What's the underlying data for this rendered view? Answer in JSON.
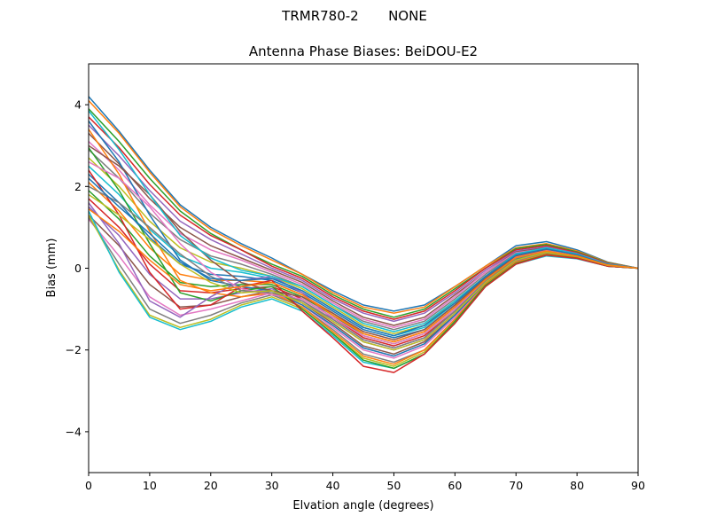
{
  "figure": {
    "suptitle": "TRMR780-2       NONE"
  },
  "chart_data": {
    "type": "line",
    "title": "Antenna Phase Biases: BeiDOU-E2",
    "xlabel": "Elvation angle (degrees)",
    "ylabel": "Bias (mm)",
    "xlim": [
      0,
      90
    ],
    "ylim": [
      -5,
      5
    ],
    "xticks": [
      0,
      10,
      20,
      30,
      40,
      50,
      60,
      70,
      80,
      90
    ],
    "yticks": [
      -4,
      -2,
      0,
      2,
      4
    ],
    "grid": false,
    "legend": false,
    "x": [
      0,
      5,
      10,
      15,
      20,
      25,
      30,
      35,
      40,
      45,
      50,
      55,
      60,
      65,
      70,
      75,
      80,
      85,
      90
    ],
    "colors": [
      "#1f77b4",
      "#ff7f0e",
      "#2ca02c",
      "#d62728",
      "#9467bd",
      "#8c564b",
      "#e377c2",
      "#7f7f7f",
      "#bcbd22",
      "#17becf"
    ],
    "series": [
      {
        "values": [
          4.2,
          3.35,
          2.4,
          1.55,
          1.0,
          0.6,
          0.25,
          -0.15,
          -0.55,
          -0.9,
          -1.05,
          -0.9,
          -0.45,
          0.05,
          0.55,
          0.65,
          0.45,
          0.15,
          0.0
        ]
      },
      {
        "values": [
          4.1,
          3.3,
          2.35,
          1.5,
          0.95,
          0.55,
          0.2,
          -0.15,
          -0.6,
          -0.95,
          -1.1,
          -0.95,
          -0.45,
          0.05,
          0.5,
          0.6,
          0.42,
          0.14,
          0.0
        ]
      },
      {
        "values": [
          3.9,
          3.1,
          2.2,
          1.4,
          0.85,
          0.45,
          0.1,
          -0.2,
          -0.65,
          -1.0,
          -1.2,
          -1.0,
          -0.5,
          0.0,
          0.48,
          0.58,
          0.4,
          0.13,
          0.0
        ]
      },
      {
        "values": [
          3.7,
          2.95,
          2.05,
          1.3,
          0.8,
          0.45,
          0.05,
          -0.25,
          -0.7,
          -1.05,
          -1.25,
          -1.05,
          -0.55,
          0.0,
          0.45,
          0.55,
          0.38,
          0.12,
          0.0
        ]
      },
      {
        "values": [
          3.5,
          2.75,
          1.9,
          1.15,
          0.7,
          0.35,
          0.0,
          -0.3,
          -0.75,
          -1.1,
          -1.3,
          -1.1,
          -0.6,
          -0.05,
          0.42,
          0.52,
          0.36,
          0.11,
          0.0
        ]
      },
      {
        "values": [
          3.3,
          2.55,
          1.7,
          1.0,
          0.55,
          0.25,
          -0.05,
          -0.35,
          -0.8,
          -1.2,
          -1.4,
          -1.2,
          -0.65,
          -0.1,
          0.4,
          0.5,
          0.35,
          0.1,
          0.0
        ]
      },
      {
        "values": [
          3.1,
          2.4,
          1.55,
          0.85,
          0.45,
          0.2,
          -0.1,
          -0.4,
          -0.85,
          -1.25,
          -1.45,
          -1.25,
          -0.7,
          -0.1,
          0.38,
          0.48,
          0.34,
          0.1,
          0.0
        ]
      },
      {
        "values": [
          2.9,
          2.2,
          1.35,
          0.7,
          0.3,
          0.1,
          -0.15,
          -0.45,
          -0.9,
          -1.3,
          -1.5,
          -1.3,
          -0.75,
          -0.15,
          0.36,
          0.46,
          0.33,
          0.1,
          0.0
        ]
      },
      {
        "values": [
          2.7,
          2.0,
          1.15,
          0.5,
          0.15,
          0.0,
          -0.2,
          -0.5,
          -0.95,
          -1.4,
          -1.6,
          -1.4,
          -0.8,
          -0.2,
          0.33,
          0.44,
          0.32,
          0.09,
          0.0
        ]
      },
      {
        "values": [
          2.5,
          1.8,
          0.95,
          0.3,
          0.0,
          -0.1,
          -0.25,
          -0.55,
          -1.0,
          -1.45,
          -1.65,
          -1.45,
          -0.85,
          -0.22,
          0.3,
          0.42,
          0.31,
          0.09,
          0.0
        ]
      },
      {
        "values": [
          2.3,
          1.6,
          0.75,
          0.1,
          -0.15,
          -0.2,
          -0.3,
          -0.6,
          -1.05,
          -1.5,
          -1.7,
          -1.5,
          -0.9,
          -0.25,
          0.28,
          0.4,
          0.3,
          0.08,
          0.0
        ]
      },
      {
        "values": [
          2.1,
          1.4,
          0.5,
          -0.15,
          -0.3,
          -0.3,
          -0.35,
          -0.65,
          -1.1,
          -1.6,
          -1.8,
          -1.55,
          -0.95,
          -0.28,
          0.25,
          0.38,
          0.29,
          0.08,
          0.0
        ]
      },
      {
        "values": [
          1.9,
          1.2,
          0.3,
          -0.35,
          -0.45,
          -0.4,
          -0.4,
          -0.7,
          -1.15,
          -1.65,
          -1.85,
          -1.6,
          -1.0,
          -0.3,
          0.22,
          0.37,
          0.28,
          0.07,
          0.0
        ]
      },
      {
        "values": [
          1.7,
          1.0,
          0.1,
          -0.55,
          -0.6,
          -0.5,
          -0.45,
          -0.75,
          -1.2,
          -1.7,
          -1.9,
          -1.65,
          -1.05,
          -0.32,
          0.2,
          0.36,
          0.27,
          0.07,
          0.0
        ]
      },
      {
        "values": [
          1.5,
          0.8,
          -0.15,
          -0.75,
          -0.75,
          -0.6,
          -0.5,
          -0.8,
          -1.3,
          -1.8,
          -2.0,
          -1.75,
          -1.1,
          -0.35,
          0.18,
          0.35,
          0.26,
          0.06,
          0.0
        ]
      },
      {
        "values": [
          1.3,
          0.55,
          -0.4,
          -0.95,
          -0.9,
          -0.7,
          -0.55,
          -0.85,
          -1.35,
          -1.9,
          -2.1,
          -1.8,
          -1.15,
          -0.38,
          0.15,
          0.34,
          0.25,
          0.06,
          0.0
        ]
      },
      {
        "values": [
          1.2,
          0.3,
          -0.7,
          -1.15,
          -1.0,
          -0.8,
          -0.6,
          -0.9,
          -1.45,
          -2.0,
          -2.2,
          -1.9,
          -1.2,
          -0.4,
          0.12,
          0.33,
          0.25,
          0.05,
          0.0
        ]
      },
      {
        "values": [
          1.25,
          0.1,
          -1.0,
          -1.35,
          -1.15,
          -0.85,
          -0.65,
          -0.95,
          -1.5,
          -2.1,
          -2.3,
          -2.0,
          -1.25,
          -0.42,
          0.1,
          0.32,
          0.24,
          0.05,
          0.0
        ]
      },
      {
        "values": [
          1.3,
          -0.05,
          -1.15,
          -1.45,
          -1.25,
          -0.9,
          -0.7,
          -1.0,
          -1.6,
          -2.2,
          -2.4,
          -2.05,
          -1.3,
          -0.45,
          0.1,
          0.31,
          0.24,
          0.05,
          0.0
        ]
      },
      {
        "values": [
          1.4,
          -0.1,
          -1.2,
          -1.5,
          -1.3,
          -0.95,
          -0.75,
          -1.05,
          -1.65,
          -2.3,
          -2.45,
          -2.1,
          -1.35,
          -0.45,
          0.1,
          0.3,
          0.23,
          0.05,
          0.0
        ]
      },
      {
        "values": [
          3.6,
          2.6,
          1.3,
          0.2,
          -0.3,
          -0.45,
          -0.55,
          -0.9,
          -1.4,
          -1.95,
          -2.15,
          -1.85,
          -1.15,
          -0.35,
          0.2,
          0.38,
          0.28,
          0.07,
          0.0
        ]
      },
      {
        "values": [
          3.4,
          2.3,
          0.9,
          -0.3,
          -0.6,
          -0.7,
          -0.6,
          -0.95,
          -1.55,
          -2.15,
          -2.35,
          -2.0,
          -1.25,
          -0.4,
          0.15,
          0.35,
          0.26,
          0.06,
          0.0
        ]
      },
      {
        "values": [
          2.95,
          1.9,
          0.6,
          -0.6,
          -0.8,
          -0.55,
          -0.45,
          -1.0,
          -1.6,
          -2.25,
          -2.45,
          -2.1,
          -1.3,
          -0.42,
          0.12,
          0.33,
          0.25,
          0.05,
          0.0
        ]
      },
      {
        "values": [
          2.4,
          1.3,
          -0.1,
          -1.0,
          -0.9,
          -0.45,
          -0.3,
          -1.05,
          -1.7,
          -2.4,
          -2.55,
          -2.1,
          -1.35,
          -0.45,
          0.1,
          0.32,
          0.24,
          0.05,
          0.0
        ]
      },
      {
        "values": [
          1.6,
          0.6,
          -0.8,
          -1.2,
          -0.7,
          -0.3,
          -0.2,
          -0.6,
          -1.25,
          -1.75,
          -1.95,
          -1.7,
          -1.05,
          -0.3,
          0.25,
          0.4,
          0.3,
          0.08,
          0.0
        ]
      },
      {
        "values": [
          3.0,
          2.5,
          1.8,
          0.9,
          0.2,
          -0.35,
          -0.55,
          -0.7,
          -1.1,
          -1.55,
          -1.75,
          -1.5,
          -0.9,
          -0.25,
          0.3,
          0.45,
          0.32,
          0.09,
          0.0
        ]
      },
      {
        "values": [
          2.6,
          2.2,
          1.5,
          0.6,
          -0.1,
          -0.5,
          -0.65,
          -0.75,
          -1.2,
          -1.65,
          -1.85,
          -1.6,
          -1.0,
          -0.3,
          0.27,
          0.43,
          0.31,
          0.08,
          0.0
        ]
      },
      {
        "values": [
          2.0,
          1.6,
          1.0,
          0.35,
          -0.2,
          -0.55,
          -0.6,
          -0.8,
          -1.25,
          -1.75,
          -1.95,
          -1.7,
          -1.05,
          -0.32,
          0.24,
          0.41,
          0.3,
          0.08,
          0.0
        ]
      },
      {
        "values": [
          1.8,
          1.3,
          0.7,
          0.1,
          -0.35,
          -0.6,
          -0.55,
          -0.85,
          -1.3,
          -1.8,
          -2.0,
          -1.75,
          -1.1,
          -0.35,
          0.2,
          0.39,
          0.29,
          0.07,
          0.0
        ]
      },
      {
        "values": [
          3.85,
          2.9,
          1.8,
          0.8,
          0.25,
          -0.05,
          -0.2,
          -0.45,
          -0.9,
          -1.35,
          -1.55,
          -1.35,
          -0.8,
          -0.2,
          0.35,
          0.5,
          0.35,
          0.1,
          0.0
        ]
      },
      {
        "values": [
          2.2,
          1.5,
          0.85,
          0.15,
          -0.25,
          -0.3,
          -0.25,
          -0.55,
          -1.0,
          -1.45,
          -1.65,
          -1.4,
          -0.85,
          -0.2,
          0.32,
          0.47,
          0.33,
          0.09,
          0.0
        ]
      },
      {
        "values": [
          1.45,
          0.9,
          0.2,
          -0.4,
          -0.55,
          -0.45,
          -0.35,
          -0.65,
          -1.15,
          -1.6,
          -1.8,
          -1.55,
          -0.95,
          -0.28,
          0.26,
          0.42,
          0.3,
          0.08,
          0.0
        ]
      }
    ]
  }
}
